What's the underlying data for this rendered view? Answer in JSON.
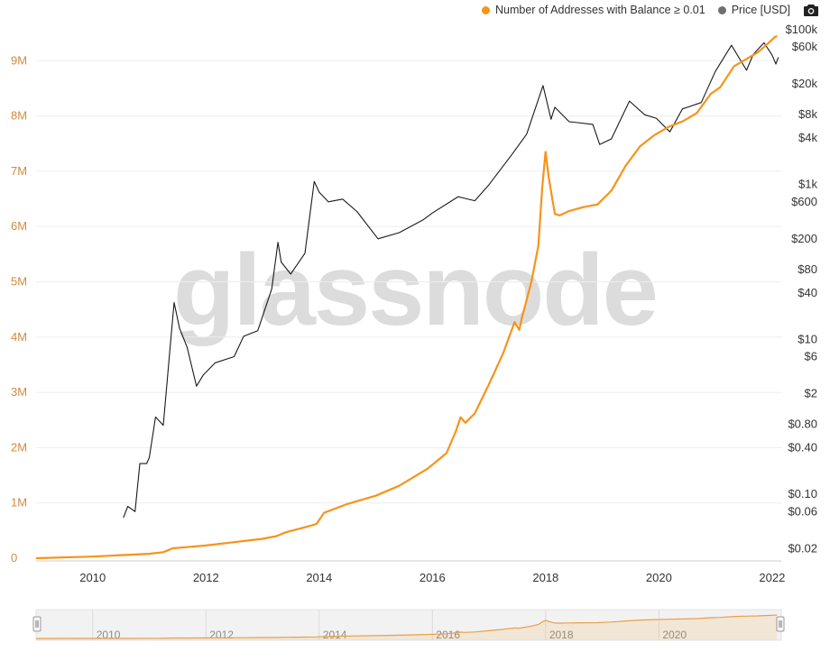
{
  "chart_data": {
    "type": "line",
    "x_range": [
      "2009-01-01",
      "2022-03-01"
    ],
    "x_ticks": [
      "2010",
      "2012",
      "2014",
      "2016",
      "2018",
      "2020",
      "2022"
    ],
    "y_left": {
      "ticks": [
        "0",
        "1M",
        "2M",
        "3M",
        "4M",
        "5M",
        "6M",
        "7M",
        "8M",
        "9M"
      ],
      "range": [
        0,
        9800000
      ]
    },
    "y_right": {
      "scale": "log",
      "ticks": [
        "$0.02",
        "$0.06",
        "$0.10",
        "$0.40",
        "$0.80",
        "$2",
        "$6",
        "$10",
        "$40",
        "$80",
        "$200",
        "$600",
        "$1k",
        "$4k",
        "$8k",
        "$20k",
        "$60k",
        "$100k"
      ],
      "range": [
        0.015,
        100000
      ]
    },
    "series": [
      {
        "name": "Number of Addresses with Balance ≥ 0.01",
        "color": "#f7931a",
        "axis": "left",
        "points": [
          [
            "2009-01-01",
            0
          ],
          [
            "2010-01-01",
            30000
          ],
          [
            "2011-01-01",
            80000
          ],
          [
            "2011-04-01",
            110000
          ],
          [
            "2011-06-01",
            180000
          ],
          [
            "2011-09-01",
            200000
          ],
          [
            "2012-01-01",
            230000
          ],
          [
            "2012-07-01",
            290000
          ],
          [
            "2013-01-01",
            350000
          ],
          [
            "2013-04-01",
            400000
          ],
          [
            "2013-06-01",
            470000
          ],
          [
            "2013-10-01",
            560000
          ],
          [
            "2013-12-15",
            620000
          ],
          [
            "2014-02-01",
            820000
          ],
          [
            "2014-07-01",
            980000
          ],
          [
            "2015-01-01",
            1130000
          ],
          [
            "2015-06-01",
            1310000
          ],
          [
            "2015-12-01",
            1620000
          ],
          [
            "2016-04-01",
            1900000
          ],
          [
            "2016-06-01",
            2300000
          ],
          [
            "2016-07-01",
            2550000
          ],
          [
            "2016-08-01",
            2450000
          ],
          [
            "2016-10-01",
            2620000
          ],
          [
            "2017-01-01",
            3150000
          ],
          [
            "2017-04-01",
            3700000
          ],
          [
            "2017-06-15",
            4270000
          ],
          [
            "2017-07-15",
            4130000
          ],
          [
            "2017-08-01",
            4350000
          ],
          [
            "2017-10-01",
            5000000
          ],
          [
            "2017-11-15",
            5650000
          ],
          [
            "2017-12-10",
            6700000
          ],
          [
            "2017-12-31",
            7350000
          ],
          [
            "2018-01-20",
            6900000
          ],
          [
            "2018-03-01",
            6230000
          ],
          [
            "2018-04-01",
            6200000
          ],
          [
            "2018-06-01",
            6280000
          ],
          [
            "2018-09-01",
            6350000
          ],
          [
            "2018-12-01",
            6400000
          ],
          [
            "2019-03-01",
            6650000
          ],
          [
            "2019-06-01",
            7100000
          ],
          [
            "2019-09-01",
            7450000
          ],
          [
            "2019-12-01",
            7650000
          ],
          [
            "2020-03-01",
            7800000
          ],
          [
            "2020-06-01",
            7900000
          ],
          [
            "2020-09-01",
            8050000
          ],
          [
            "2020-12-01",
            8400000
          ],
          [
            "2021-02-01",
            8520000
          ],
          [
            "2021-05-01",
            8900000
          ],
          [
            "2021-08-01",
            9050000
          ],
          [
            "2021-10-01",
            9150000
          ],
          [
            "2021-12-01",
            9300000
          ],
          [
            "2022-01-15",
            9420000
          ],
          [
            "2022-02-01",
            9450000
          ]
        ]
      },
      {
        "name": "Price [USD]",
        "color": "#1a1a1a",
        "axis": "right",
        "points": [
          [
            "2010-07-18",
            0.05
          ],
          [
            "2010-08-15",
            0.07
          ],
          [
            "2010-10-01",
            0.06
          ],
          [
            "2010-11-01",
            0.25
          ],
          [
            "2010-12-15",
            0.25
          ],
          [
            "2011-01-01",
            0.3
          ],
          [
            "2011-02-10",
            1.0
          ],
          [
            "2011-04-01",
            0.78
          ],
          [
            "2011-05-15",
            8
          ],
          [
            "2011-06-10",
            30
          ],
          [
            "2011-07-15",
            14
          ],
          [
            "2011-09-01",
            8
          ],
          [
            "2011-11-01",
            2.5
          ],
          [
            "2011-12-15",
            3.5
          ],
          [
            "2012-03-01",
            5
          ],
          [
            "2012-07-01",
            6
          ],
          [
            "2012-09-01",
            11
          ],
          [
            "2012-12-01",
            13
          ],
          [
            "2013-03-01",
            45
          ],
          [
            "2013-04-10",
            180
          ],
          [
            "2013-05-01",
            100
          ],
          [
            "2013-07-01",
            70
          ],
          [
            "2013-10-01",
            130
          ],
          [
            "2013-11-30",
            1100
          ],
          [
            "2014-01-01",
            800
          ],
          [
            "2014-03-01",
            600
          ],
          [
            "2014-06-01",
            650
          ],
          [
            "2014-09-01",
            450
          ],
          [
            "2015-01-15",
            200
          ],
          [
            "2015-06-01",
            240
          ],
          [
            "2015-11-01",
            350
          ],
          [
            "2016-01-01",
            430
          ],
          [
            "2016-06-15",
            700
          ],
          [
            "2016-10-01",
            620
          ],
          [
            "2017-01-01",
            1000
          ],
          [
            "2017-06-01",
            2500
          ],
          [
            "2017-09-01",
            4500
          ],
          [
            "2017-12-15",
            19000
          ],
          [
            "2018-02-05",
            7000
          ],
          [
            "2018-03-01",
            10000
          ],
          [
            "2018-06-01",
            6500
          ],
          [
            "2018-11-01",
            6000
          ],
          [
            "2018-12-15",
            3300
          ],
          [
            "2019-03-01",
            3900
          ],
          [
            "2019-06-25",
            12000
          ],
          [
            "2019-10-01",
            8000
          ],
          [
            "2019-12-15",
            7200
          ],
          [
            "2020-03-12",
            4800
          ],
          [
            "2020-06-01",
            9500
          ],
          [
            "2020-10-01",
            11500
          ],
          [
            "2020-12-31",
            29000
          ],
          [
            "2021-04-14",
            63000
          ],
          [
            "2021-07-20",
            30000
          ],
          [
            "2021-09-01",
            48000
          ],
          [
            "2021-11-10",
            68000
          ],
          [
            "2022-01-01",
            47000
          ],
          [
            "2022-01-25",
            36000
          ],
          [
            "2022-02-10",
            44000
          ]
        ]
      }
    ],
    "legend_position": "top-right",
    "watermark": "glassnode",
    "navigator_ticks": [
      "2010",
      "2012",
      "2014",
      "2016",
      "2018",
      "2020"
    ]
  }
}
